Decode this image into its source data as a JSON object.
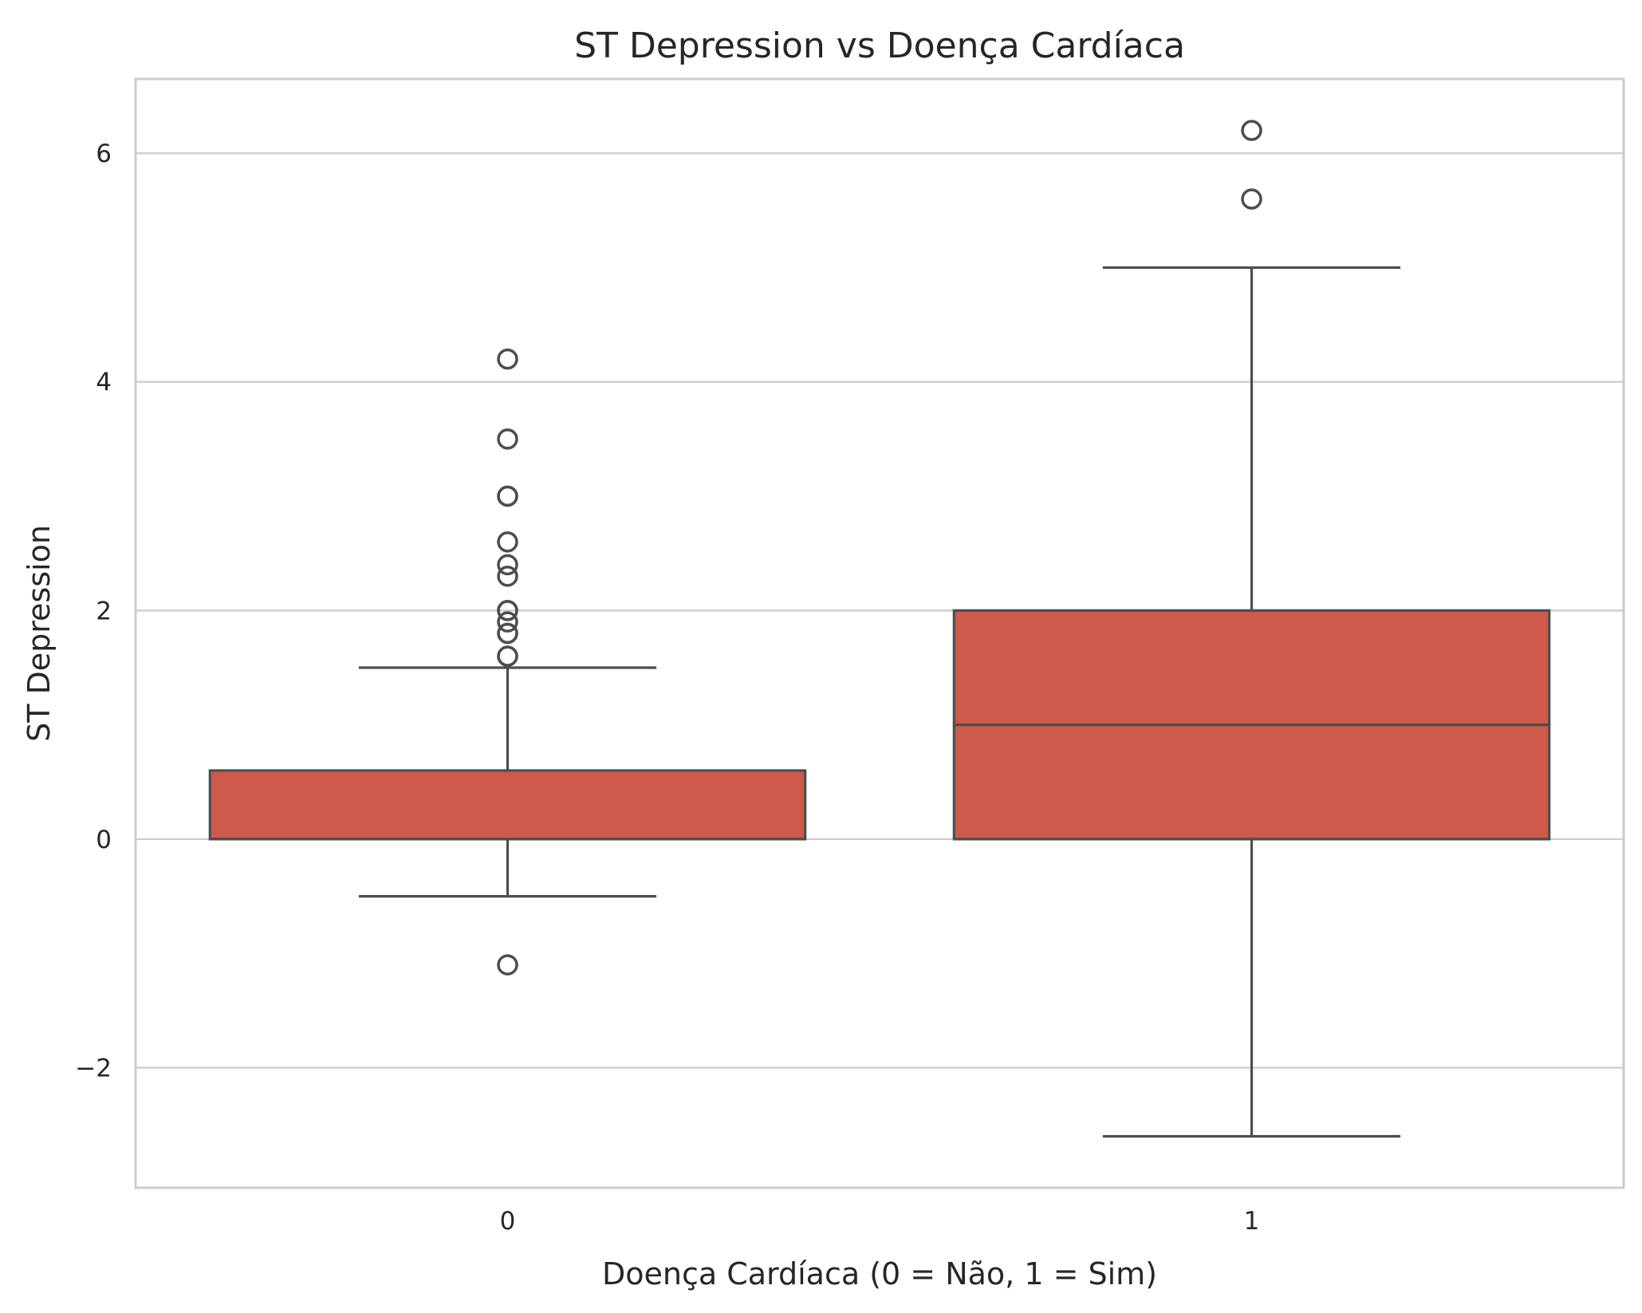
{
  "chart_data": {
    "type": "box",
    "title": "ST Depression vs Doença Cardíaca",
    "xlabel": "Doença Cardíaca (0 = Não, 1 = Sim)",
    "ylabel": "ST Depression",
    "ylim": [
      -3.05,
      6.65
    ],
    "yticks": [
      -2,
      0,
      2,
      4,
      6
    ],
    "ytick_labels": [
      "−2",
      "0",
      "2",
      "4",
      "6"
    ],
    "grid": "horizontal",
    "box_color": "#cd5a4a",
    "line_color": "#4d4d4d",
    "categories": [
      "0",
      "1"
    ],
    "boxes": [
      {
        "category": "0",
        "whisker_low": -0.5,
        "q1": 0.0,
        "median": 0.0,
        "q3": 0.6,
        "whisker_high": 1.5,
        "fliers": [
          4.2,
          3.5,
          3.0,
          3.0,
          2.6,
          2.4,
          2.3,
          2.0,
          2.0,
          1.9,
          1.8,
          1.8,
          1.6,
          1.6,
          -1.1
        ]
      },
      {
        "category": "1",
        "whisker_low": -2.6,
        "q1": 0.0,
        "median": 1.0,
        "q3": 2.0,
        "whisker_high": 5.0,
        "fliers": [
          6.2,
          5.6
        ]
      }
    ]
  }
}
